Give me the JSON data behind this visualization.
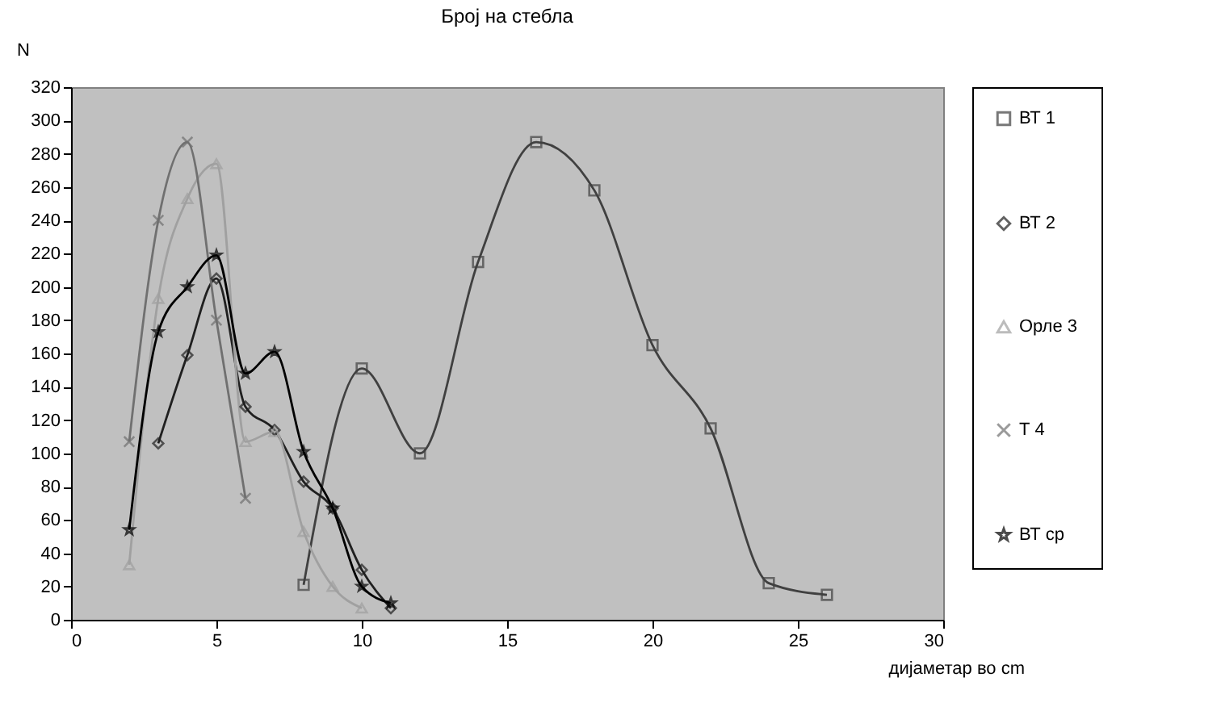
{
  "chart_data": {
    "type": "line",
    "title": "Број  на стебла",
    "xlabel": "дијаметар во cm",
    "ylabel": "N",
    "xlim": [
      0,
      30
    ],
    "xticks": [
      0,
      5,
      10,
      15,
      20,
      25,
      30
    ],
    "ylim": [
      0,
      320
    ],
    "yticks": [
      0,
      20,
      40,
      60,
      80,
      100,
      120,
      140,
      160,
      180,
      200,
      220,
      240,
      260,
      280,
      300,
      320
    ],
    "grid": false,
    "legend": "right",
    "line_style": "solid",
    "series": [
      {
        "name": "ВТ 1",
        "color": "#404040",
        "marker": "square",
        "x": [
          8,
          10,
          12,
          14,
          16,
          18,
          20,
          22,
          24,
          26
        ],
        "values": [
          21,
          151,
          100,
          215,
          287,
          258,
          165,
          115,
          22,
          15
        ]
      },
      {
        "name": "ВТ 2",
        "color": "#202020",
        "marker": "diamond",
        "x": [
          3,
          4,
          5,
          6,
          7,
          8,
          9,
          10,
          11
        ],
        "values": [
          106,
          159,
          205,
          128,
          114,
          83,
          67,
          30,
          7
        ]
      },
      {
        "name": "Орле 3",
        "color": "#a0a0a0",
        "marker": "triangle",
        "x": [
          2,
          3,
          4,
          5,
          6,
          7,
          8,
          9,
          10
        ],
        "values": [
          33,
          193,
          253,
          274,
          107,
          113,
          53,
          20,
          7
        ]
      },
      {
        "name": "Т 4",
        "color": "#707070",
        "marker": "cross",
        "x": [
          2,
          3,
          4,
          5,
          6
        ],
        "values": [
          107,
          240,
          287,
          180,
          73
        ]
      },
      {
        "name": "ВТ ср",
        "color": "#000000",
        "marker": "star",
        "x": [
          2,
          3,
          4,
          5,
          6,
          7,
          8,
          9,
          10,
          11
        ],
        "values": [
          54,
          173,
          200,
          219,
          148,
          161,
          101,
          67,
          20,
          10
        ]
      }
    ]
  }
}
